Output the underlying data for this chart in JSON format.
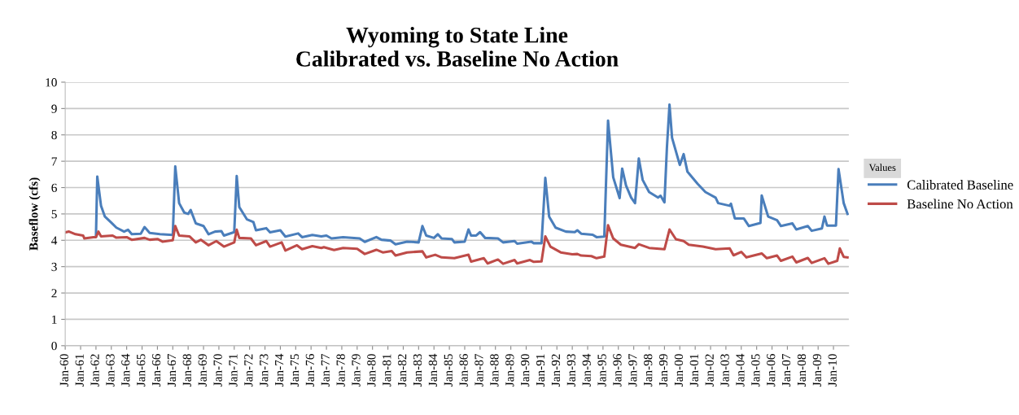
{
  "chart_data": {
    "type": "line",
    "title": "Wyoming to State Line\nCalibrated vs. Baseline No Action",
    "ylabel": "Baseflow (cfs)",
    "legend_title": "Values",
    "legend": "right",
    "grid": "y",
    "marker": "none",
    "line_style": "solid",
    "ylim": [
      0,
      10
    ],
    "yticks": [
      0,
      1,
      2,
      3,
      4,
      5,
      6,
      7,
      8,
      9,
      10
    ],
    "xlim": [
      "1960-01",
      "2011-01"
    ],
    "xticks": [
      {
        "value": "1960-01",
        "label": "Jan-60"
      },
      {
        "value": "1961-01",
        "label": "Jan-61"
      },
      {
        "value": "1962-01",
        "label": "Jan-62"
      },
      {
        "value": "1963-01",
        "label": "Jan-63"
      },
      {
        "value": "1964-01",
        "label": "Jan-64"
      },
      {
        "value": "1965-01",
        "label": "Jan-65"
      },
      {
        "value": "1966-01",
        "label": "Jan-66"
      },
      {
        "value": "1967-01",
        "label": "Jan-67"
      },
      {
        "value": "1968-01",
        "label": "Jan-68"
      },
      {
        "value": "1969-01",
        "label": "Jan-69"
      },
      {
        "value": "1970-01",
        "label": "Jan-70"
      },
      {
        "value": "1971-01",
        "label": "Jan-71"
      },
      {
        "value": "1972-01",
        "label": "Jan-72"
      },
      {
        "value": "1973-01",
        "label": "Jan-73"
      },
      {
        "value": "1974-01",
        "label": "Jan-74"
      },
      {
        "value": "1975-01",
        "label": "Jan-75"
      },
      {
        "value": "1976-01",
        "label": "Jan-76"
      },
      {
        "value": "1977-01",
        "label": "Jan-77"
      },
      {
        "value": "1978-01",
        "label": "Jan-78"
      },
      {
        "value": "1979-01",
        "label": "Jan-79"
      },
      {
        "value": "1980-01",
        "label": "Jan-80"
      },
      {
        "value": "1981-01",
        "label": "Jan-81"
      },
      {
        "value": "1982-01",
        "label": "Jan-82"
      },
      {
        "value": "1983-01",
        "label": "Jan-83"
      },
      {
        "value": "1984-01",
        "label": "Jan-84"
      },
      {
        "value": "1985-01",
        "label": "Jan-85"
      },
      {
        "value": "1986-01",
        "label": "Jan-86"
      },
      {
        "value": "1987-01",
        "label": "Jan-87"
      },
      {
        "value": "1988-01",
        "label": "Jan-88"
      },
      {
        "value": "1989-01",
        "label": "Jan-89"
      },
      {
        "value": "1990-01",
        "label": "Jan-90"
      },
      {
        "value": "1991-01",
        "label": "Jan-91"
      },
      {
        "value": "1992-01",
        "label": "Jan-92"
      },
      {
        "value": "1993-01",
        "label": "Jan-93"
      },
      {
        "value": "1994-01",
        "label": "Jan-94"
      },
      {
        "value": "1995-01",
        "label": "Jan-95"
      },
      {
        "value": "1996-01",
        "label": "Jan-96"
      },
      {
        "value": "1997-01",
        "label": "Jan-97"
      },
      {
        "value": "1998-01",
        "label": "Jan-98"
      },
      {
        "value": "1999-01",
        "label": "Jan-99"
      },
      {
        "value": "2000-01",
        "label": "Jan-00"
      },
      {
        "value": "2001-01",
        "label": "Jan-01"
      },
      {
        "value": "2002-01",
        "label": "Jan-02"
      },
      {
        "value": "2003-01",
        "label": "Jan-03"
      },
      {
        "value": "2004-01",
        "label": "Jan-04"
      },
      {
        "value": "2005-01",
        "label": "Jan-05"
      },
      {
        "value": "2006-01",
        "label": "Jan-06"
      },
      {
        "value": "2007-01",
        "label": "Jan-07"
      },
      {
        "value": "2008-01",
        "label": "Jan-08"
      },
      {
        "value": "2009-01",
        "label": "Jan-09"
      },
      {
        "value": "2010-01",
        "label": "Jan-10"
      }
    ],
    "series": [
      {
        "name": "Calibrated Baseline",
        "color": "#4a7ebb",
        "x": [
          "1962-01",
          "1962-02",
          "1962-05",
          "1962-08",
          "1963-01",
          "1963-05",
          "1963-11",
          "1964-02",
          "1964-05",
          "1964-12",
          "1965-03",
          "1965-07",
          "1966-03",
          "1967-01",
          "1967-03",
          "1967-06",
          "1967-10",
          "1968-01",
          "1968-03",
          "1968-07",
          "1969-01",
          "1969-05",
          "1969-10",
          "1970-03",
          "1970-05",
          "1971-01",
          "1971-03",
          "1971-05",
          "1971-11",
          "1972-04",
          "1972-06",
          "1973-02",
          "1973-05",
          "1974-01",
          "1974-05",
          "1975-03",
          "1975-06",
          "1976-02",
          "1976-09",
          "1977-01",
          "1977-05",
          "1978-02",
          "1979-03",
          "1979-07",
          "1980-04",
          "1980-08",
          "1981-03",
          "1981-07",
          "1982-04",
          "1983-01",
          "1983-04",
          "1983-07",
          "1984-01",
          "1984-04",
          "1984-07",
          "1985-03",
          "1985-05",
          "1986-01",
          "1986-04",
          "1986-06",
          "1986-10",
          "1987-01",
          "1987-05",
          "1988-03",
          "1988-07",
          "1989-04",
          "1989-06",
          "1990-05",
          "1990-07",
          "1991-01",
          "1991-04",
          "1991-07",
          "1991-12",
          "1992-08",
          "1993-03",
          "1993-05",
          "1993-08",
          "1994-05",
          "1994-08",
          "1995-02",
          "1995-05",
          "1995-09",
          "1996-02",
          "1996-04",
          "1996-07",
          "1996-11",
          "1997-02",
          "1997-05",
          "1997-08",
          "1998-01",
          "1998-08",
          "1998-10",
          "1999-01",
          "1999-03",
          "1999-05",
          "1999-07",
          "2000-01",
          "2000-04",
          "2000-07",
          "2001-03",
          "2001-09",
          "2002-05",
          "2002-07",
          "2003-04",
          "2003-05",
          "2003-08",
          "2004-03",
          "2004-07",
          "2005-04",
          "2005-05",
          "2005-10",
          "2006-05",
          "2006-08",
          "2007-05",
          "2007-08",
          "2008-05",
          "2008-08",
          "2009-04",
          "2009-06",
          "2009-08",
          "2010-03",
          "2010-05",
          "2010-09",
          "2010-12"
        ],
        "values": [
          4.15,
          6.42,
          5.31,
          4.9,
          4.67,
          4.48,
          4.33,
          4.4,
          4.23,
          4.25,
          4.5,
          4.28,
          4.23,
          4.2,
          6.8,
          5.41,
          5.05,
          5.0,
          5.15,
          4.64,
          4.54,
          4.23,
          4.33,
          4.35,
          4.18,
          4.31,
          6.44,
          5.26,
          4.79,
          4.69,
          4.38,
          4.46,
          4.3,
          4.38,
          4.14,
          4.26,
          4.12,
          4.2,
          4.15,
          4.18,
          4.07,
          4.12,
          4.07,
          3.94,
          4.12,
          4.02,
          3.99,
          3.85,
          3.95,
          3.92,
          4.54,
          4.18,
          4.09,
          4.23,
          4.07,
          4.05,
          3.92,
          3.95,
          4.41,
          4.18,
          4.18,
          4.31,
          4.09,
          4.07,
          3.92,
          3.97,
          3.87,
          3.95,
          3.89,
          3.89,
          6.37,
          4.9,
          4.48,
          4.33,
          4.31,
          4.38,
          4.25,
          4.21,
          4.12,
          4.14,
          8.54,
          6.39,
          5.6,
          6.72,
          6.08,
          5.62,
          5.41,
          7.1,
          6.29,
          5.83,
          5.62,
          5.69,
          5.44,
          7.53,
          9.15,
          7.89,
          6.86,
          7.27,
          6.6,
          6.14,
          5.83,
          5.62,
          5.41,
          5.31,
          5.39,
          4.83,
          4.83,
          4.54,
          4.66,
          5.7,
          4.9,
          4.76,
          4.54,
          4.64,
          4.41,
          4.54,
          4.36,
          4.45,
          4.9,
          4.56,
          4.56,
          6.7,
          5.41,
          5.0
        ]
      },
      {
        "name": "Baseline No Action",
        "color": "#be4b48",
        "x": [
          "1960-01",
          "1960-04",
          "1960-09",
          "1961-03",
          "1961-04",
          "1961-11",
          "1962-01",
          "1962-03",
          "1962-05",
          "1963-02",
          "1963-05",
          "1964-01",
          "1964-05",
          "1965-03",
          "1965-07",
          "1966-01",
          "1966-05",
          "1967-01",
          "1967-03",
          "1967-06",
          "1968-02",
          "1968-07",
          "1968-11",
          "1969-05",
          "1969-11",
          "1970-05",
          "1971-01",
          "1971-03",
          "1971-05",
          "1972-02",
          "1972-06",
          "1973-02",
          "1973-05",
          "1974-02",
          "1974-05",
          "1975-02",
          "1975-06",
          "1976-02",
          "1976-09",
          "1976-11",
          "1977-07",
          "1978-02",
          "1979-01",
          "1979-07",
          "1980-04",
          "1980-09",
          "1981-04",
          "1981-07",
          "1982-04",
          "1983-04",
          "1983-07",
          "1984-02",
          "1984-07",
          "1985-05",
          "1986-04",
          "1986-06",
          "1987-04",
          "1987-07",
          "1988-03",
          "1988-07",
          "1989-04",
          "1989-06",
          "1990-04",
          "1990-07",
          "1991-01",
          "1991-04",
          "1991-08",
          "1992-04",
          "1993-01",
          "1993-05",
          "1993-08",
          "1994-04",
          "1994-08",
          "1995-02",
          "1995-05",
          "1995-09",
          "1996-03",
          "1997-02",
          "1997-05",
          "1998-01",
          "1999-01",
          "1999-05",
          "1999-10",
          "2000-04",
          "2000-08",
          "2001-07",
          "2002-05",
          "2003-04",
          "2003-07",
          "2004-01",
          "2004-05",
          "2005-05",
          "2005-09",
          "2006-05",
          "2006-08",
          "2007-05",
          "2007-08",
          "2008-05",
          "2008-08",
          "2009-06",
          "2009-09",
          "2010-04",
          "2010-06",
          "2010-09",
          "2010-12"
        ],
        "values": [
          4.3,
          4.33,
          4.23,
          4.18,
          4.07,
          4.12,
          4.12,
          4.33,
          4.15,
          4.18,
          4.1,
          4.12,
          4.02,
          4.09,
          4.02,
          4.05,
          3.95,
          4.0,
          4.54,
          4.18,
          4.15,
          3.92,
          4.02,
          3.81,
          3.97,
          3.76,
          3.92,
          4.4,
          4.09,
          4.07,
          3.81,
          3.97,
          3.76,
          3.92,
          3.61,
          3.81,
          3.66,
          3.78,
          3.71,
          3.74,
          3.63,
          3.71,
          3.68,
          3.48,
          3.64,
          3.54,
          3.59,
          3.42,
          3.54,
          3.58,
          3.35,
          3.45,
          3.35,
          3.32,
          3.45,
          3.19,
          3.32,
          3.12,
          3.27,
          3.11,
          3.25,
          3.12,
          3.25,
          3.18,
          3.2,
          4.15,
          3.76,
          3.54,
          3.47,
          3.48,
          3.42,
          3.4,
          3.32,
          3.38,
          4.57,
          4.07,
          3.83,
          3.71,
          3.85,
          3.71,
          3.66,
          4.41,
          4.04,
          3.97,
          3.83,
          3.76,
          3.66,
          3.69,
          3.43,
          3.56,
          3.35,
          3.5,
          3.32,
          3.42,
          3.22,
          3.38,
          3.16,
          3.33,
          3.14,
          3.32,
          3.11,
          3.22,
          3.69,
          3.37,
          3.35
        ]
      }
    ]
  }
}
